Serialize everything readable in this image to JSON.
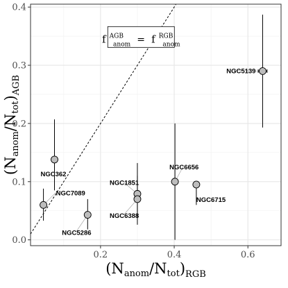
{
  "chart_data": {
    "type": "scatter",
    "title": "",
    "xlabel": {
      "main": "(N",
      "sub1": "anom",
      "mid": "/N",
      "sub2": "tot",
      "close": ")",
      "sub3": "RGB"
    },
    "ylabel": {
      "main": "(N",
      "sub1": "anom",
      "mid": "/N",
      "sub2": "tot",
      "close": ")",
      "sub3": "AGB"
    },
    "xlim": [
      0.01,
      0.69
    ],
    "ylim": [
      -0.01,
      0.405
    ],
    "x_ticks": [
      0.2,
      0.4,
      0.6
    ],
    "y_ticks": [
      0.0,
      0.1,
      0.2,
      0.3,
      0.4
    ],
    "x_tick_labels": [
      "0.2",
      "0.4",
      "0.6"
    ],
    "y_tick_labels": [
      "0.0",
      "0.1",
      "0.2",
      "0.3",
      "0.4"
    ],
    "grid": true,
    "reference_line": {
      "style": "dashed",
      "slope": 1,
      "intercept": 0
    },
    "annotation": {
      "lhs": "f",
      "lhs_sup": "AGB",
      "lhs_sub": "anom",
      "eq": "=",
      "rhs": "f",
      "rhs_sup": "RGB",
      "rhs_sub": "anom",
      "anchor": {
        "x": 0.31,
        "y": 0.345
      }
    },
    "points": [
      {
        "name": "NGC5139",
        "x": 0.64,
        "y": 0.29,
        "xerr": 0.012,
        "y_lo": 0.193,
        "y_hi": 0.387,
        "label_dx": -62,
        "label_dy": 3
      },
      {
        "name": "NGC362",
        "x": 0.075,
        "y": 0.138,
        "xerr": 0,
        "y_lo": 0.085,
        "y_hi": 0.207,
        "label_dx": -20,
        "label_dy": 24
      },
      {
        "name": "NGC7089",
        "x": 0.045,
        "y": 0.06,
        "xerr": 0,
        "y_lo": 0.033,
        "y_hi": 0.088,
        "label_dx": 18,
        "label_dy": -14
      },
      {
        "name": "NGC5286",
        "x": 0.165,
        "y": 0.043,
        "xerr": 0,
        "y_lo": 0.018,
        "y_hi": 0.07,
        "label_dx": -37,
        "label_dy": 29
      },
      {
        "name": "NGC1851",
        "x": 0.3,
        "y": 0.079,
        "xerr": 0.008,
        "y_lo": 0.048,
        "y_hi": 0.132,
        "label_dx": -40,
        "label_dy": -13
      },
      {
        "name": "NGC6388",
        "x": 0.3,
        "y": 0.07,
        "xerr": 0.008,
        "y_lo": 0.026,
        "y_hi": 0.11,
        "label_dx": -40,
        "label_dy": 27
      },
      {
        "name": "NGC6656",
        "x": 0.402,
        "y": 0.1,
        "xerr": 0.008,
        "y_lo": 0.0,
        "y_hi": 0.2,
        "label_dx": -8,
        "label_dy": -18
      },
      {
        "name": "NGC6715",
        "x": 0.46,
        "y": 0.095,
        "xerr": 0.006,
        "y_lo": 0.06,
        "y_hi": 0.1,
        "label_dx": 0,
        "label_dy": 25
      }
    ]
  }
}
